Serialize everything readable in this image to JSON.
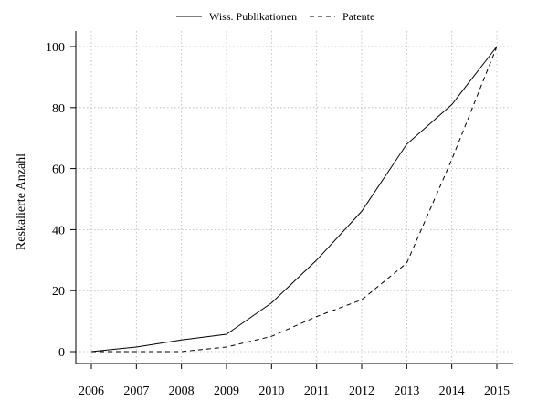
{
  "chart_data": {
    "type": "line",
    "title": "",
    "xlabel": "",
    "ylabel": "Reskalierte Anzahl",
    "x": [
      2006,
      2007,
      2008,
      2009,
      2010,
      2011,
      2012,
      2013,
      2014,
      2015
    ],
    "ylim": [
      -4,
      100
    ],
    "yticks": [
      0,
      20,
      40,
      60,
      80,
      100
    ],
    "grid": true,
    "legend_position": "top",
    "series": [
      {
        "name": "Wiss. Publikationen",
        "line_style": "solid",
        "color": "#000000",
        "values": [
          0,
          1.5,
          3.8,
          5.7,
          16,
          30,
          46,
          68,
          81,
          100
        ]
      },
      {
        "name": "Patente",
        "line_style": "dashed",
        "color": "#000000",
        "values": [
          0,
          0,
          0,
          1.5,
          5,
          11.5,
          17,
          29,
          63,
          100
        ]
      }
    ]
  }
}
